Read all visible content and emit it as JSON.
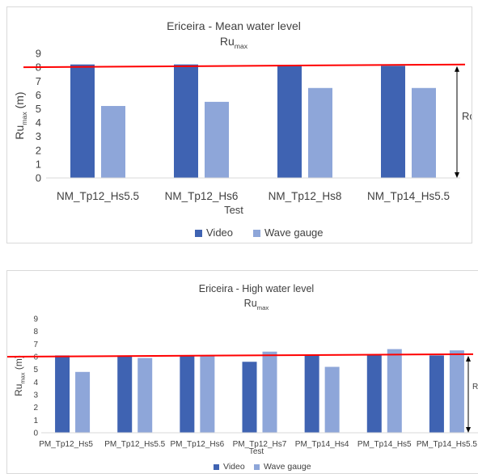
{
  "chart_data": [
    {
      "type": "bar",
      "title": "Ericeira - Mean water level",
      "subtitle_base": "Ru",
      "subtitle_sub": "max",
      "xlabel": "Test",
      "ylabel_base": "Ru",
      "ylabel_sub": "max",
      "ylabel_unit": " (m)",
      "ylim": [
        0,
        9
      ],
      "yticks": [
        "0",
        "1",
        "2",
        "3",
        "4",
        "5",
        "6",
        "7",
        "8",
        "9"
      ],
      "categories": [
        "NM_Tp12_Hs5.5",
        "NM_Tp12_Hs6",
        "NM_Tp12_Hs8",
        "NM_Tp14_Hs5.5"
      ],
      "series": [
        {
          "name": "Video",
          "color": "#3f63b2",
          "values": [
            8.2,
            8.2,
            8.1,
            8.1
          ]
        },
        {
          "name": "Wave gauge",
          "color": "#8ea6d9",
          "values": [
            5.2,
            5.5,
            6.5,
            6.5
          ]
        }
      ],
      "reference_line": {
        "start": 8.0,
        "end": 8.2,
        "color": "#ff0000"
      },
      "annotation": "Rc",
      "grid": false,
      "legend_position": "bottom"
    },
    {
      "type": "bar",
      "title": "Ericeira - High water level",
      "subtitle_base": "Ru",
      "subtitle_sub": "max",
      "xlabel": "Test",
      "ylabel_base": "Ru",
      "ylabel_sub": "max",
      "ylabel_unit": " (m)",
      "ylim": [
        0,
        9
      ],
      "yticks": [
        "0",
        "1",
        "2",
        "3",
        "4",
        "5",
        "6",
        "7",
        "8",
        "9"
      ],
      "categories": [
        "PM_Tp12_Hs5",
        "PM_Tp12_Hs5.5",
        "PM_Tp12_Hs6",
        "PM_Tp12_Hs7",
        "PM_Tp14_Hs4",
        "PM_Tp14_Hs5",
        "PM_Tp14_Hs5.5"
      ],
      "series": [
        {
          "name": "Video",
          "color": "#3f63b2",
          "values": [
            6.1,
            6.1,
            6.1,
            5.6,
            6.1,
            6.1,
            6.1
          ]
        },
        {
          "name": "Wave gauge",
          "color": "#8ea6d9",
          "values": [
            4.8,
            5.9,
            6.1,
            6.4,
            5.2,
            6.6,
            6.5
          ]
        }
      ],
      "reference_line": {
        "start": 6.0,
        "end": 6.2,
        "color": "#ff0000"
      },
      "annotation": "Rc",
      "grid": false,
      "legend_position": "bottom"
    }
  ]
}
